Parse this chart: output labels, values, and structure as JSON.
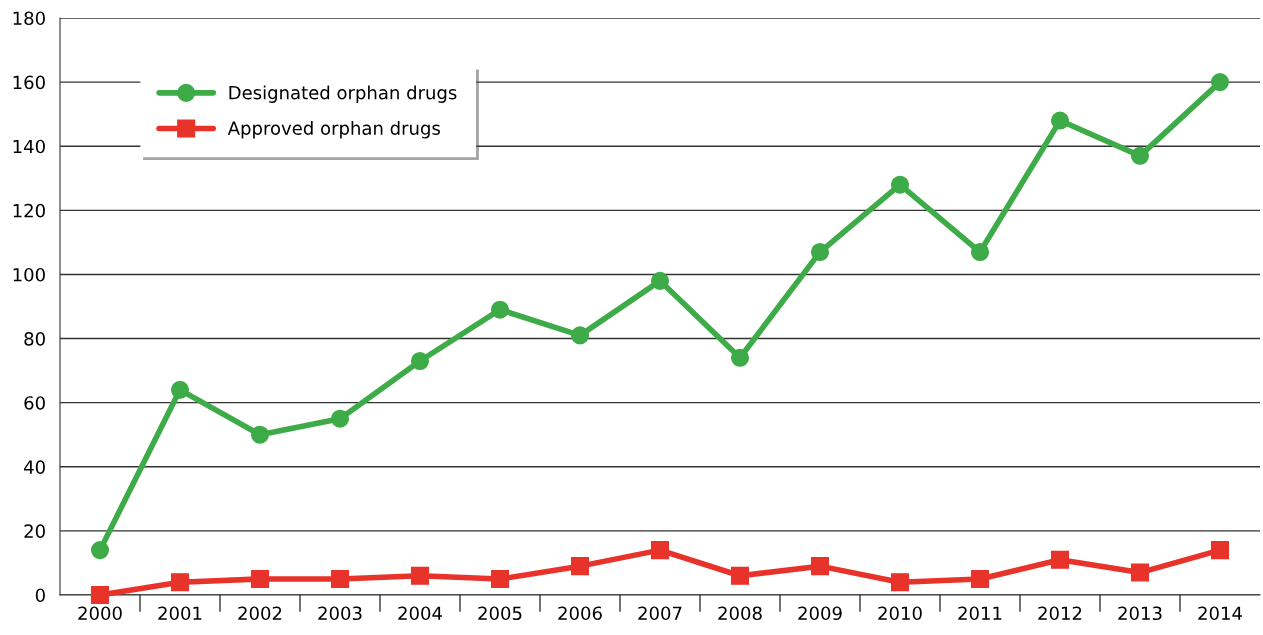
{
  "chart_data": {
    "type": "line",
    "categories": [
      "2000",
      "2001",
      "2002",
      "2003",
      "2004",
      "2005",
      "2006",
      "2007",
      "2008",
      "2009",
      "2010",
      "2011",
      "2012",
      "2013",
      "2014"
    ],
    "series": [
      {
        "name": "Designated orphan drugs",
        "color": "#3dab47",
        "marker": "circle",
        "values": [
          14,
          64,
          50,
          55,
          73,
          89,
          81,
          98,
          74,
          107,
          128,
          107,
          148,
          137,
          160
        ]
      },
      {
        "name": "Approved orphan drugs",
        "color": "#e8332b",
        "marker": "square",
        "values": [
          0,
          4,
          5,
          5,
          6,
          5,
          9,
          14,
          6,
          9,
          4,
          5,
          11,
          7,
          14
        ]
      }
    ],
    "ylim": [
      0,
      180
    ],
    "yticks": [
      0,
      20,
      40,
      60,
      80,
      100,
      120,
      140,
      160,
      180
    ],
    "grid": "y",
    "legend": "top left",
    "line_style": "solid"
  }
}
